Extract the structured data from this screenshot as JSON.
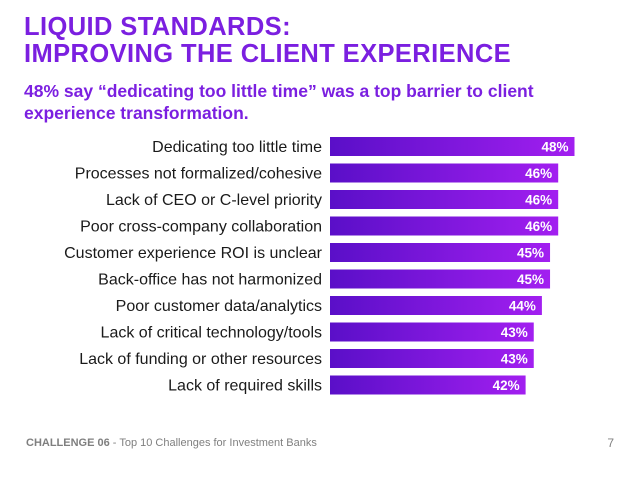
{
  "slide": {
    "title_line1": "LIQUID STANDARDS:",
    "title_line2": "IMPROVING THE CLIENT EXPERIENCE",
    "subtitle": "48% say “dedicating too little time” was a top barrier to client experience transformation.",
    "footer_lead": "CHALLENGE 06",
    "footer_rest": " - Top 10 Challenges for Investment Banks",
    "page_number": "7"
  },
  "colors": {
    "accent": "#7b1fe0",
    "bar_gradient_start": "#5a0fc8",
    "bar_gradient_end": "#a21ff0"
  },
  "chart_data": {
    "type": "bar",
    "orientation": "horizontal",
    "categories": [
      "Dedicating too little time",
      "Processes not formalized/cohesive",
      "Lack of CEO or C-level priority",
      "Poor cross-company collaboration",
      "Customer experience ROI is unclear",
      "Back-office has not harmonized",
      "Poor customer data/analytics",
      "Lack of critical technology/tools",
      "Lack of funding or other resources",
      "Lack of required skills"
    ],
    "values": [
      48,
      46,
      46,
      46,
      45,
      45,
      44,
      43,
      43,
      42
    ],
    "value_labels": [
      "48%",
      "46%",
      "46%",
      "46%",
      "45%",
      "45%",
      "44%",
      "43%",
      "43%",
      "42%"
    ],
    "title": "",
    "xlabel": "",
    "ylabel": "",
    "grid": false
  }
}
